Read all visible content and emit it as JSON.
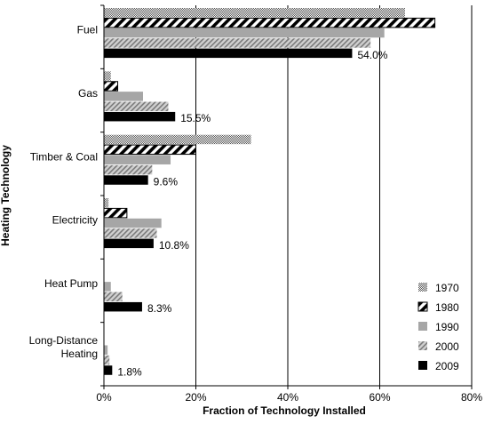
{
  "chart_data": {
    "type": "bar",
    "orientation": "horizontal",
    "xlabel": "Fraction of Technology Installed",
    "ylabel": "Heating Technology",
    "xlim": [
      0,
      80
    ],
    "x_ticks": [
      "0%",
      "20%",
      "40%",
      "60%",
      "80%"
    ],
    "x_tick_values": [
      0,
      20,
      40,
      60,
      80
    ],
    "grid": "vertical",
    "legend_position": "bottom-right",
    "categories": [
      {
        "label": "Fuel",
        "lines": [
          "Fuel"
        ]
      },
      {
        "label": "Gas",
        "lines": [
          "Gas"
        ]
      },
      {
        "label": "Timber & Coal",
        "lines": [
          "Timber & Coal"
        ]
      },
      {
        "label": "Electricity",
        "lines": [
          "Electricity"
        ]
      },
      {
        "label": "Heat Pump",
        "lines": [
          "Heat Pump"
        ]
      },
      {
        "label": "Long-Distance Heating",
        "lines": [
          "Long-Distance",
          "Heating"
        ]
      }
    ],
    "series": [
      {
        "name": "1970",
        "pattern": "dots",
        "values": [
          65.5,
          1.5,
          32.0,
          1.0,
          0.0,
          0.0
        ]
      },
      {
        "name": "1980",
        "pattern": "hatch-dense",
        "values": [
          72.0,
          3.0,
          20.0,
          5.0,
          0.0,
          0.0
        ]
      },
      {
        "name": "1990",
        "pattern": "gray",
        "values": [
          61.0,
          8.5,
          14.5,
          12.5,
          1.5,
          0.8
        ]
      },
      {
        "name": "2000",
        "pattern": "hatch-light",
        "values": [
          58.0,
          14.0,
          10.5,
          11.5,
          4.0,
          1.2
        ]
      },
      {
        "name": "2009",
        "pattern": "black",
        "values": [
          54.0,
          15.5,
          9.6,
          10.8,
          8.3,
          1.8
        ]
      }
    ],
    "data_labels": [
      "54.0%",
      "15.5%",
      "9.6%",
      "10.8%",
      "8.3%",
      "1.8%"
    ],
    "colors": {
      "gray": "#a6a6a6",
      "black": "#000000",
      "hatch_light": "#8c8c8c"
    }
  }
}
